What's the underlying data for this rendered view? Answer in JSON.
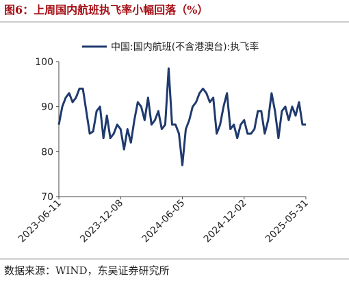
{
  "chart_data": {
    "type": "line",
    "title": "图6：上周国内航班执飞率小幅回落（%）",
    "source": "数据来源：WIND，东吴证券研究所",
    "x": [
      "2023-06-11",
      "2023-06-21",
      "2023-07-01",
      "2023-07-11",
      "2023-07-21",
      "2023-07-31",
      "2023-08-10",
      "2023-08-20",
      "2023-08-30",
      "2023-09-09",
      "2023-09-19",
      "2023-09-29",
      "2023-10-09",
      "2023-10-19",
      "2023-10-29",
      "2023-11-08",
      "2023-11-18",
      "2023-11-28",
      "2023-12-08",
      "2023-12-18",
      "2023-12-28",
      "2024-01-07",
      "2024-01-17",
      "2024-01-27",
      "2024-02-06",
      "2024-02-16",
      "2024-02-26",
      "2024-03-07",
      "2024-03-17",
      "2024-03-27",
      "2024-04-06",
      "2024-04-16",
      "2024-04-26",
      "2024-05-06",
      "2024-05-16",
      "2024-05-26",
      "2024-06-05",
      "2024-06-15",
      "2024-06-25",
      "2024-07-05",
      "2024-07-15",
      "2024-07-25",
      "2024-08-04",
      "2024-08-14",
      "2024-08-24",
      "2024-09-03",
      "2024-09-13",
      "2024-09-23",
      "2024-10-03",
      "2024-10-13",
      "2024-10-23",
      "2024-11-02",
      "2024-11-12",
      "2024-11-22",
      "2024-12-02",
      "2024-12-12",
      "2024-12-22",
      "2025-01-01",
      "2025-01-11",
      "2025-01-21",
      "2025-01-31",
      "2025-02-10",
      "2025-02-20",
      "2025-03-02",
      "2025-03-12",
      "2025-03-22",
      "2025-04-01",
      "2025-04-11",
      "2025-04-21",
      "2025-05-01",
      "2025-05-11",
      "2025-05-21",
      "2025-05-31"
    ],
    "series": [
      {
        "name": "中国:国内航班(不含港澳台):执飞率",
        "color": "#1f3a6e",
        "values": [
          86,
          90,
          92,
          93,
          91,
          92,
          94,
          94,
          89,
          84,
          84.5,
          89,
          90,
          83,
          88,
          83,
          84,
          86,
          85,
          80.5,
          85,
          82,
          87,
          91,
          90,
          87,
          92,
          86,
          87,
          89,
          85,
          86,
          98.5,
          86,
          86,
          84,
          77,
          85,
          87,
          90,
          91,
          93,
          94,
          93,
          91,
          92,
          84,
          86,
          90,
          93,
          85,
          86,
          83,
          86,
          87,
          84,
          84,
          85,
          89,
          89,
          84,
          87,
          93,
          89,
          83,
          89,
          90,
          87,
          90,
          88,
          91,
          86,
          86
        ]
      }
    ],
    "xlim": [
      "2023-06-11",
      "2025-05-31"
    ],
    "xticks": [
      "2023-06-11",
      "2023-12-08",
      "2024-06-05",
      "2024-12-02",
      "2025-05-31"
    ],
    "ylim": [
      70,
      100
    ],
    "yticks": [
      70,
      80,
      90,
      100
    ],
    "grid": false,
    "legend": "top"
  }
}
